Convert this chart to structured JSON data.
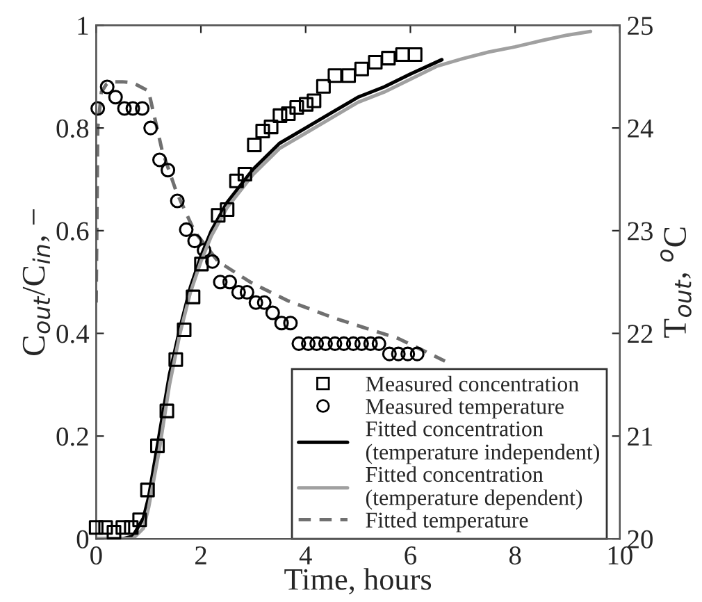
{
  "chart_data": {
    "type": "scatter",
    "xlabel": "Time, hours",
    "ylabel": "C$_{out}$/C$_{in}$, −",
    "y2label": "T$_{out}$, $^{o}$C",
    "xlim": [
      0,
      10
    ],
    "xticks": [
      0,
      2,
      4,
      6,
      8,
      10
    ],
    "ylim": [
      0,
      1
    ],
    "yticks": [
      0,
      0.2,
      0.4,
      0.6,
      0.8,
      1
    ],
    "y2lim": [
      20,
      25
    ],
    "y2ticks": [
      20,
      21,
      22,
      23,
      24,
      25
    ],
    "legend": "bottom right",
    "grid": false,
    "series": [
      {
        "name": "Measured concentration",
        "marker": "square",
        "color": "#000000",
        "x": [
          0.0,
          0.18,
          0.34,
          0.51,
          0.67,
          0.83,
          0.98,
          1.17,
          1.35,
          1.52,
          1.68,
          1.85,
          2.01,
          2.33,
          2.5,
          2.68,
          2.84,
          3.02,
          3.18,
          3.34,
          3.51,
          3.67,
          3.83,
          4.01,
          4.16,
          4.34,
          4.56,
          4.82,
          5.07,
          5.33,
          5.58,
          5.85,
          6.09
        ],
        "values": [
          0.022,
          0.022,
          0.013,
          0.022,
          0.022,
          0.037,
          0.095,
          0.181,
          0.249,
          0.349,
          0.407,
          0.471,
          0.535,
          0.63,
          0.641,
          0.697,
          0.71,
          0.767,
          0.794,
          0.802,
          0.824,
          0.828,
          0.84,
          0.846,
          0.853,
          0.881,
          0.902,
          0.902,
          0.915,
          0.928,
          0.936,
          0.943,
          0.943
        ]
      },
      {
        "name": "Measured temperature",
        "marker": "circle",
        "color": "#000000",
        "axis": "y2",
        "x": [
          0.03,
          0.21,
          0.37,
          0.54,
          0.7,
          0.88,
          1.04,
          1.21,
          1.37,
          1.55,
          1.72,
          1.88,
          2.06,
          2.22,
          2.37,
          2.55,
          2.72,
          2.88,
          3.05,
          3.21,
          3.37,
          3.54,
          3.71,
          3.87,
          4.05,
          4.21,
          4.38,
          4.56,
          4.73,
          4.91,
          5.07,
          5.24,
          5.4,
          5.6,
          5.77,
          5.95,
          6.13
        ],
        "values": [
          24.19,
          24.4,
          24.3,
          24.19,
          24.19,
          24.19,
          24.0,
          23.69,
          23.59,
          23.29,
          23.01,
          22.9,
          22.81,
          22.7,
          22.5,
          22.5,
          22.4,
          22.4,
          22.3,
          22.3,
          22.2,
          22.1,
          22.1,
          21.9,
          21.9,
          21.9,
          21.9,
          21.9,
          21.9,
          21.9,
          21.9,
          21.9,
          21.9,
          21.8,
          21.8,
          21.8,
          21.8
        ]
      },
      {
        "name": "Fitted concentration\n(temperature independent)",
        "type": "line",
        "marker": "none",
        "line_style": "solid",
        "color": "#000000",
        "x": [
          0,
          0.5,
          0.7,
          0.9,
          1.0,
          1.2,
          1.4,
          1.6,
          1.8,
          2.0,
          2.2,
          2.5,
          3.0,
          3.5,
          4.0,
          4.5,
          5.0,
          5.5,
          6.0,
          6.6
        ],
        "values": [
          0,
          0,
          0.005,
          0.04,
          0.08,
          0.2,
          0.32,
          0.41,
          0.49,
          0.55,
          0.6,
          0.655,
          0.72,
          0.77,
          0.8,
          0.83,
          0.86,
          0.88,
          0.905,
          0.933
        ]
      },
      {
        "name": "Fitted concentration\n(temperature dependent)",
        "type": "line",
        "marker": "none",
        "line_style": "solid",
        "color": "#a0a0a0",
        "x": [
          0,
          0.7,
          0.9,
          1.0,
          1.2,
          1.4,
          1.6,
          1.8,
          2.0,
          2.2,
          2.5,
          3.0,
          3.5,
          4.0,
          4.5,
          5.0,
          5.5,
          6.0,
          6.5,
          7.0,
          7.5,
          8.0,
          8.5,
          9.0,
          9.44
        ],
        "values": [
          0,
          0,
          0.02,
          0.06,
          0.17,
          0.3,
          0.4,
          0.48,
          0.54,
          0.59,
          0.645,
          0.71,
          0.76,
          0.79,
          0.82,
          0.85,
          0.87,
          0.895,
          0.92,
          0.935,
          0.948,
          0.958,
          0.97,
          0.981,
          0.988
        ]
      },
      {
        "name": "Fitted temperature",
        "type": "line",
        "marker": "none",
        "line_style": "dashed",
        "color": "#707070",
        "axis": "y2",
        "x": [
          0,
          0.03,
          0.1,
          0.2,
          0.35,
          0.5,
          0.7,
          0.85,
          1.0,
          1.26,
          1.53,
          1.88,
          2.33,
          2.94,
          3.65,
          4.54,
          5.77,
          6.66
        ],
        "values": [
          22.3,
          24.0,
          24.35,
          24.43,
          24.45,
          24.45,
          24.44,
          24.4,
          24.36,
          23.78,
          23.38,
          22.99,
          22.7,
          22.5,
          22.32,
          22.15,
          21.95,
          21.73
        ]
      }
    ]
  }
}
